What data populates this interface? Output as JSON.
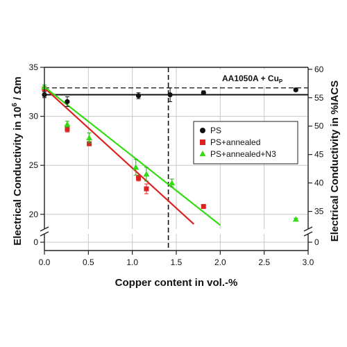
{
  "chart_data": {
    "type": "scatter",
    "annotation": "AA1050A + Cu",
    "annotation_sub": "P",
    "xlabel": "Copper content in vol.-%",
    "ylabel_left_prefix": "Electrical Conductivity in 10",
    "ylabel_left_sup": "6",
    "ylabel_left_suffix": " / Ωm",
    "ylabel_right": "Electrical Conductivity in %IACS",
    "xlim": [
      0,
      3
    ],
    "ylim_left": [
      18.5,
      35
    ],
    "grid": true,
    "legend_position": "right",
    "x_ticks": [
      "0.0",
      "0.5",
      "1.0",
      "1.5",
      "2.0",
      "2.5",
      "3.0"
    ],
    "left_ticks": [
      {
        "value": 20,
        "label": "20"
      },
      {
        "value": 25,
        "label": "25"
      },
      {
        "value": 30,
        "label": "30"
      },
      {
        "value": 35,
        "label": "35"
      }
    ],
    "left_break_label": "0",
    "right_ticks": [
      {
        "pct": 35,
        "label": "35"
      },
      {
        "pct": 40,
        "label": "40"
      },
      {
        "pct": 45,
        "label": "45"
      },
      {
        "pct": 50,
        "label": "50"
      },
      {
        "pct": 55,
        "label": "55"
      },
      {
        "pct": 60,
        "label": "60"
      }
    ],
    "right_break_label": "0",
    "pct_to_left_factor": 0.58,
    "reference_lines": [
      {
        "style": "solid",
        "y": 32.2
      },
      {
        "style": "dashed",
        "y": 32.9
      },
      {
        "style": "dashed-vertical",
        "x": 1.41
      }
    ],
    "series": [
      {
        "name": "PS",
        "color": "#111111",
        "marker": "circle",
        "points": [
          {
            "x": 0.0,
            "y": 32.2,
            "err": 0.3
          },
          {
            "x": 0.26,
            "y": 31.5,
            "err": 0.5
          },
          {
            "x": 1.07,
            "y": 32.1,
            "err": 0.3
          },
          {
            "x": 1.43,
            "y": 32.2,
            "err": 0.7
          },
          {
            "x": 1.81,
            "y": 32.4,
            "err": 0.2
          },
          {
            "x": 2.86,
            "y": 32.7,
            "err": 0.15
          }
        ]
      },
      {
        "name": "PS+annealed",
        "color": "#dd2222",
        "marker": "square",
        "points": [
          {
            "x": 0.0,
            "y": 32.8,
            "err": 0.2
          },
          {
            "x": 0.26,
            "y": 28.7,
            "err": 0.3
          },
          {
            "x": 0.51,
            "y": 27.2,
            "err": 0.2
          },
          {
            "x": 1.07,
            "y": 23.7,
            "err": 0.3
          },
          {
            "x": 1.16,
            "y": 22.6,
            "err": 0.5
          },
          {
            "x": 1.81,
            "y": 20.8,
            "err": 0.2
          }
        ],
        "fit": [
          [
            0.0,
            32.9
          ],
          [
            1.7,
            19.0
          ]
        ]
      },
      {
        "name": "PS+annealed+N3",
        "color": "#33dd11",
        "marker": "triangle",
        "points": [
          {
            "x": 0.0,
            "y": 33.0,
            "err": 0.2
          },
          {
            "x": 0.26,
            "y": 29.2,
            "err": 0.3
          },
          {
            "x": 0.51,
            "y": 27.8,
            "err": 0.5
          },
          {
            "x": 1.04,
            "y": 24.8,
            "err": 0.8
          },
          {
            "x": 1.16,
            "y": 24.1,
            "err": 0.7
          },
          {
            "x": 1.45,
            "y": 23.2,
            "err": 0.4
          },
          {
            "x": 2.86,
            "y": 19.5,
            "err": 0.1
          }
        ],
        "fit": [
          [
            0.0,
            33.0
          ],
          [
            2.0,
            18.9
          ]
        ]
      }
    ]
  }
}
